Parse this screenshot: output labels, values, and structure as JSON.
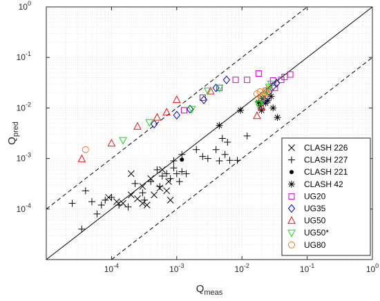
{
  "chart_data": {
    "type": "scatter",
    "title": "",
    "xlabel": {
      "base": "Q",
      "sub": "meas"
    },
    "ylabel": {
      "base": "Q",
      "sub": "pred"
    },
    "xscale": "log",
    "yscale": "log",
    "xlim": [
      1e-05,
      1
    ],
    "ylim": [
      1e-05,
      1
    ],
    "grid": true,
    "legend_position": "bottom-right",
    "tick_labels": [
      {
        "base": "10",
        "exp": "-4"
      },
      {
        "base": "10",
        "exp": "-3"
      },
      {
        "base": "10",
        "exp": "-2"
      },
      {
        "base": "10",
        "exp": "-1"
      },
      {
        "base": "10",
        "exp": "0"
      }
    ],
    "reference_lines": [
      {
        "style": "solid",
        "factor": 1
      },
      {
        "style": "dashed",
        "factor": 10
      },
      {
        "style": "dashed",
        "factor": 0.1
      }
    ],
    "series": [
      {
        "name": "CLASH 226",
        "marker": "x",
        "color": "#000000",
        "points": [
          [
            9e-05,
            0.00017
          ],
          [
            0.00012,
            0.00014
          ],
          [
            0.00015,
            0.00013
          ],
          [
            0.0002,
            0.00019
          ],
          [
            0.00025,
            0.00016
          ],
          [
            0.0003,
            0.00013
          ],
          [
            0.00035,
            0.00012
          ],
          [
            0.00045,
            0.00019
          ],
          [
            0.00055,
            0.00026
          ],
          [
            0.0007,
            0.00023
          ],
          [
            0.0008,
            0.00015
          ],
          [
            0.0002,
            0.0005
          ],
          [
            0.0003,
            0.00028
          ],
          [
            0.0004,
            0.0004
          ],
          [
            0.0006,
            0.0006
          ],
          [
            0.00075,
            0.00035
          ]
        ]
      },
      {
        "name": "CLASH 227",
        "marker": "plus",
        "color": "#000000",
        "points": [
          [
            2.5e-05,
            0.00013
          ],
          [
            4e-05,
            0.00023
          ],
          [
            3.5e-05,
            4e-05
          ],
          [
            5e-05,
            0.00014
          ],
          [
            6e-05,
            8e-05
          ],
          [
            7e-05,
            0.00012
          ],
          [
            8e-05,
            0.00015
          ],
          [
            0.0001,
            0.00017
          ],
          [
            0.00013,
            0.00012
          ],
          [
            0.00018,
            0.00011
          ],
          [
            0.00023,
            0.00032
          ],
          [
            0.0003,
            0.00021
          ],
          [
            0.0004,
            0.00035
          ],
          [
            0.0005,
            0.0006
          ],
          [
            0.0006,
            0.00045
          ],
          [
            0.0007,
            0.0005
          ],
          [
            0.0008,
            0.0004
          ],
          [
            0.0009,
            0.00065
          ],
          [
            0.001,
            0.0005
          ],
          [
            0.0012,
            0.00055
          ],
          [
            0.0014,
            0.0005
          ],
          [
            0.0011,
            0.00035
          ],
          [
            0.0012,
            0.0012
          ],
          [
            0.002,
            0.0015
          ],
          [
            0.003,
            0.001
          ],
          [
            0.004,
            0.0015
          ],
          [
            0.005,
            0.0025
          ],
          [
            0.0055,
            0.0012
          ],
          [
            0.006,
            0.0021
          ],
          [
            0.0045,
            0.0009
          ],
          [
            0.0065,
            0.00092
          ],
          [
            0.0085,
            0.00092
          ],
          [
            0.012,
            0.0028
          ],
          [
            0.0025,
            0.0011
          ],
          [
            0.00055,
            0.00028
          ],
          [
            0.00032,
            0.00015
          ],
          [
            0.0009,
            0.0009
          ]
        ]
      },
      {
        "name": "CLASH 221",
        "marker": "dot",
        "color": "#000000",
        "points": [
          [
            0.0012,
            0.00095
          ]
        ]
      },
      {
        "name": "CLASH 42",
        "marker": "asterisk",
        "color": "#000000",
        "points": [
          [
            0.0045,
            0.0045
          ],
          [
            0.0095,
            0.009
          ],
          [
            0.018,
            0.013
          ],
          [
            0.019,
            0.011
          ],
          [
            0.021,
            0.0155
          ],
          [
            0.023,
            0.0125
          ],
          [
            0.025,
            0.014
          ],
          [
            0.028,
            0.017
          ],
          [
            0.03,
            0.01
          ],
          [
            0.035,
            0.0065
          ],
          [
            0.02,
            0.009
          ]
        ]
      },
      {
        "name": "UG20",
        "marker": "square",
        "color": "#cc00cc",
        "points": [
          [
            0.0013,
            0.009
          ],
          [
            0.0025,
            0.016
          ],
          [
            0.0045,
            0.025
          ],
          [
            0.008,
            0.036
          ],
          [
            0.012,
            0.036
          ],
          [
            0.018,
            0.048
          ],
          [
            0.03,
            0.035
          ],
          [
            0.04,
            0.036
          ],
          [
            0.045,
            0.041
          ],
          [
            0.055,
            0.046
          ],
          [
            0.032,
            0.025
          ]
        ]
      },
      {
        "name": "UG35",
        "marker": "diamond",
        "color": "#0000cc",
        "points": [
          [
            0.00045,
            0.0048
          ],
          [
            0.001,
            0.0072
          ],
          [
            0.0016,
            0.0095
          ],
          [
            0.0026,
            0.0145
          ],
          [
            0.004,
            0.025
          ],
          [
            0.0058,
            0.036
          ],
          [
            0.022,
            0.0145
          ],
          [
            0.026,
            0.021
          ],
          [
            0.03,
            0.027
          ],
          [
            0.034,
            0.031
          ]
        ]
      },
      {
        "name": "UG50",
        "marker": "triangle-up",
        "color": "#ee1111",
        "points": [
          [
            3.5e-05,
            0.00098
          ],
          [
            0.0001,
            0.002
          ],
          [
            0.00025,
            0.0043
          ],
          [
            0.0005,
            0.0065
          ],
          [
            0.0007,
            0.0082
          ],
          [
            0.001,
            0.0145
          ],
          [
            0.0033,
            0.0215
          ],
          [
            0.017,
            0.007
          ],
          [
            0.02,
            0.0105
          ]
        ]
      },
      {
        "name": "UG50*",
        "marker": "triangle-down",
        "color": "#11dd11",
        "points": [
          [
            0.00015,
            0.0023
          ],
          [
            0.00038,
            0.0052
          ],
          [
            0.0017,
            0.0095
          ],
          [
            0.003,
            0.022
          ],
          [
            0.0045,
            0.025
          ],
          [
            0.018,
            0.012
          ],
          [
            0.02,
            0.014
          ],
          [
            0.022,
            0.018
          ],
          [
            0.024,
            0.022
          ],
          [
            0.026,
            0.026
          ],
          [
            0.028,
            0.03
          ]
        ]
      },
      {
        "name": "UG80",
        "marker": "circle",
        "color": "#ee7722",
        "points": [
          [
            4e-05,
            0.0015
          ],
          [
            0.017,
            0.019
          ],
          [
            0.019,
            0.021
          ],
          [
            0.021,
            0.018
          ],
          [
            0.023,
            0.022
          ],
          [
            0.024,
            0.02
          ],
          [
            0.026,
            0.024
          ],
          [
            0.02,
            0.016
          ]
        ]
      }
    ]
  }
}
